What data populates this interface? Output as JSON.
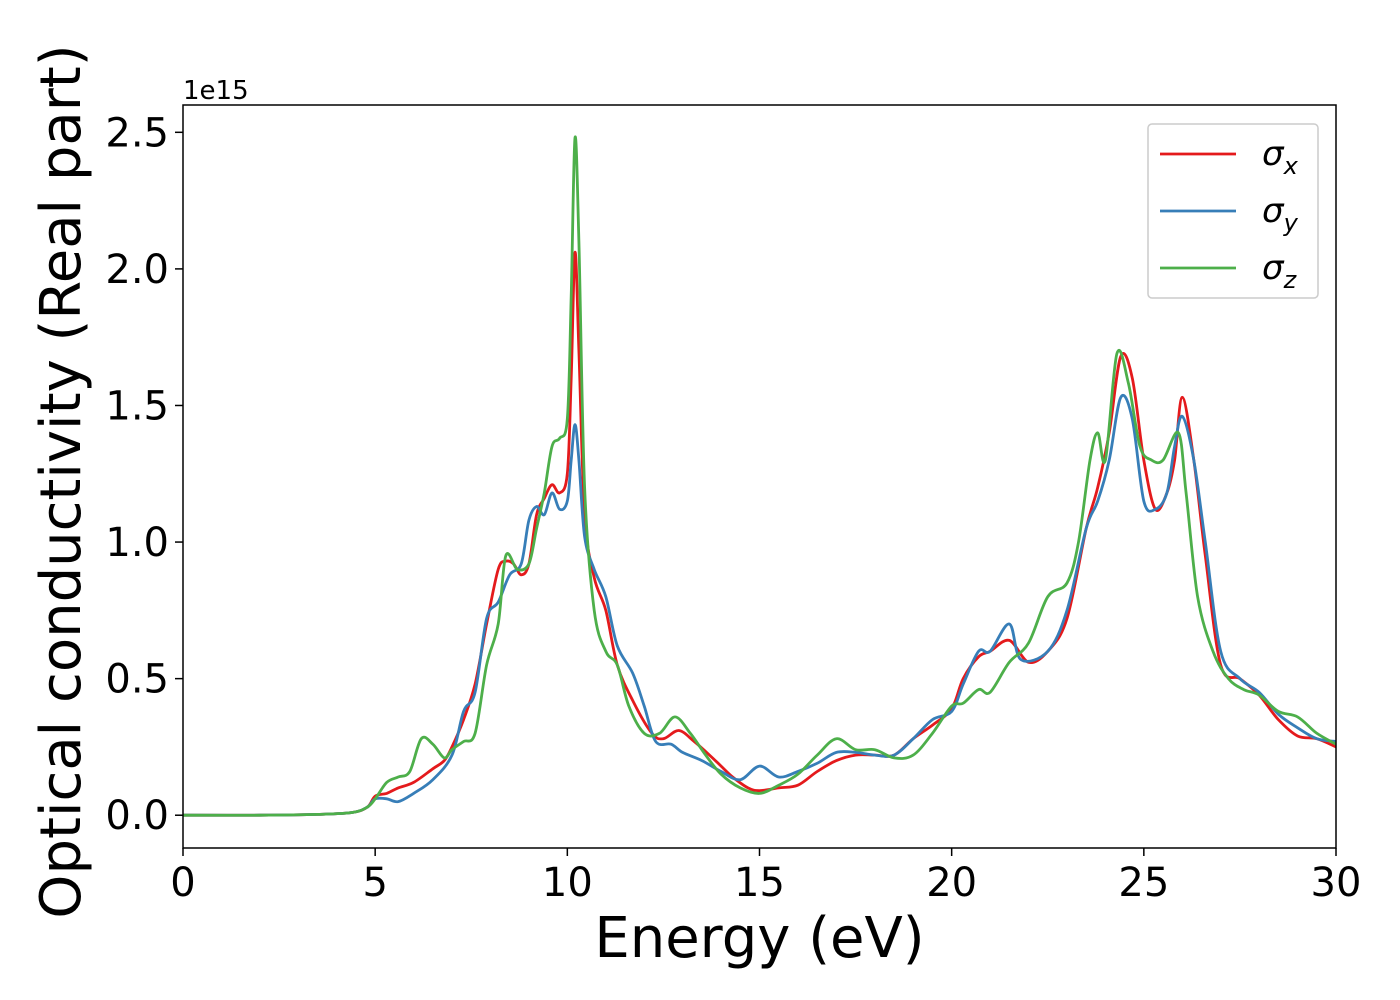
{
  "chart_data": {
    "type": "line",
    "title": "",
    "xlabel": "Energy (eV)",
    "ylabel": "Optical conductivity (Real part)",
    "y_offset_label": "1e15",
    "xlim": [
      0,
      30
    ],
    "ylim": [
      -0.12,
      2.6
    ],
    "xticks": [
      0,
      5,
      10,
      15,
      20,
      25,
      30
    ],
    "yticks": [
      0.0,
      0.5,
      1.0,
      1.5,
      2.0,
      2.5
    ],
    "xtick_labels": [
      "0",
      "5",
      "10",
      "15",
      "20",
      "25",
      "30"
    ],
    "ytick_labels": [
      "0.0",
      "0.5",
      "1.0",
      "1.5",
      "2.0",
      "2.5"
    ],
    "grid": false,
    "legend_position": "top-right",
    "series": [
      {
        "name": "σx",
        "base": "σ",
        "sub": "x",
        "color": "#e41a1c",
        "points": [
          [
            0,
            0
          ],
          [
            2,
            0
          ],
          [
            3.5,
            0.003
          ],
          [
            4.4,
            0.01
          ],
          [
            4.8,
            0.03
          ],
          [
            5.0,
            0.07
          ],
          [
            5.3,
            0.08
          ],
          [
            5.6,
            0.1
          ],
          [
            6.0,
            0.12
          ],
          [
            6.5,
            0.17
          ],
          [
            6.8,
            0.2
          ],
          [
            7.0,
            0.25
          ],
          [
            7.3,
            0.35
          ],
          [
            7.6,
            0.48
          ],
          [
            7.9,
            0.7
          ],
          [
            8.2,
            0.9
          ],
          [
            8.4,
            0.93
          ],
          [
            8.6,
            0.92
          ],
          [
            8.8,
            0.88
          ],
          [
            9.0,
            0.92
          ],
          [
            9.2,
            1.1
          ],
          [
            9.4,
            1.16
          ],
          [
            9.6,
            1.21
          ],
          [
            9.8,
            1.18
          ],
          [
            10.0,
            1.25
          ],
          [
            10.1,
            1.6
          ],
          [
            10.2,
            2.06
          ],
          [
            10.3,
            1.7
          ],
          [
            10.45,
            1.1
          ],
          [
            10.7,
            0.87
          ],
          [
            11.0,
            0.75
          ],
          [
            11.3,
            0.55
          ],
          [
            11.7,
            0.42
          ],
          [
            12.2,
            0.3
          ],
          [
            12.5,
            0.28
          ],
          [
            12.9,
            0.31
          ],
          [
            13.3,
            0.27
          ],
          [
            13.7,
            0.22
          ],
          [
            14.0,
            0.18
          ],
          [
            14.3,
            0.14
          ],
          [
            14.7,
            0.1
          ],
          [
            15.0,
            0.09
          ],
          [
            15.5,
            0.1
          ],
          [
            16.0,
            0.11
          ],
          [
            16.5,
            0.16
          ],
          [
            17.0,
            0.2
          ],
          [
            17.5,
            0.22
          ],
          [
            18.0,
            0.22
          ],
          [
            18.5,
            0.22
          ],
          [
            19.0,
            0.28
          ],
          [
            19.5,
            0.33
          ],
          [
            20.0,
            0.39
          ],
          [
            20.3,
            0.5
          ],
          [
            20.7,
            0.58
          ],
          [
            21.0,
            0.6
          ],
          [
            21.5,
            0.64
          ],
          [
            22.0,
            0.56
          ],
          [
            22.5,
            0.6
          ],
          [
            23.0,
            0.72
          ],
          [
            23.5,
            1.05
          ],
          [
            23.8,
            1.2
          ],
          [
            24.1,
            1.4
          ],
          [
            24.4,
            1.68
          ],
          [
            24.7,
            1.6
          ],
          [
            25.0,
            1.3
          ],
          [
            25.3,
            1.12
          ],
          [
            25.6,
            1.18
          ],
          [
            25.8,
            1.3
          ],
          [
            26.0,
            1.53
          ],
          [
            26.3,
            1.3
          ],
          [
            26.6,
            0.95
          ],
          [
            27.0,
            0.55
          ],
          [
            27.5,
            0.5
          ],
          [
            28.0,
            0.44
          ],
          [
            28.5,
            0.35
          ],
          [
            29.0,
            0.29
          ],
          [
            29.5,
            0.28
          ],
          [
            30.0,
            0.25
          ]
        ]
      },
      {
        "name": "σy",
        "base": "σ",
        "sub": "y",
        "color": "#377eb8",
        "points": [
          [
            0,
            0
          ],
          [
            2,
            0
          ],
          [
            3.5,
            0.003
          ],
          [
            4.4,
            0.01
          ],
          [
            4.8,
            0.03
          ],
          [
            5.0,
            0.06
          ],
          [
            5.3,
            0.06
          ],
          [
            5.6,
            0.05
          ],
          [
            6.0,
            0.08
          ],
          [
            6.5,
            0.13
          ],
          [
            7.0,
            0.22
          ],
          [
            7.3,
            0.38
          ],
          [
            7.6,
            0.45
          ],
          [
            7.9,
            0.72
          ],
          [
            8.2,
            0.78
          ],
          [
            8.5,
            0.88
          ],
          [
            8.8,
            0.92
          ],
          [
            9.0,
            1.08
          ],
          [
            9.2,
            1.13
          ],
          [
            9.4,
            1.1
          ],
          [
            9.6,
            1.18
          ],
          [
            9.8,
            1.12
          ],
          [
            10.0,
            1.15
          ],
          [
            10.1,
            1.3
          ],
          [
            10.2,
            1.43
          ],
          [
            10.3,
            1.3
          ],
          [
            10.45,
            1.02
          ],
          [
            10.7,
            0.9
          ],
          [
            11.0,
            0.8
          ],
          [
            11.3,
            0.62
          ],
          [
            11.7,
            0.52
          ],
          [
            12.0,
            0.4
          ],
          [
            12.3,
            0.27
          ],
          [
            12.7,
            0.26
          ],
          [
            13.0,
            0.23
          ],
          [
            13.5,
            0.2
          ],
          [
            14.0,
            0.16
          ],
          [
            14.5,
            0.13
          ],
          [
            15.0,
            0.18
          ],
          [
            15.5,
            0.14
          ],
          [
            16.0,
            0.16
          ],
          [
            16.5,
            0.19
          ],
          [
            17.0,
            0.23
          ],
          [
            17.5,
            0.23
          ],
          [
            18.0,
            0.22
          ],
          [
            18.5,
            0.22
          ],
          [
            19.0,
            0.28
          ],
          [
            19.5,
            0.35
          ],
          [
            20.0,
            0.38
          ],
          [
            20.3,
            0.48
          ],
          [
            20.7,
            0.6
          ],
          [
            21.0,
            0.6
          ],
          [
            21.5,
            0.7
          ],
          [
            21.8,
            0.57
          ],
          [
            22.5,
            0.6
          ],
          [
            23.0,
            0.75
          ],
          [
            23.5,
            1.05
          ],
          [
            23.8,
            1.15
          ],
          [
            24.1,
            1.3
          ],
          [
            24.4,
            1.53
          ],
          [
            24.7,
            1.45
          ],
          [
            25.0,
            1.15
          ],
          [
            25.3,
            1.12
          ],
          [
            25.6,
            1.18
          ],
          [
            25.8,
            1.35
          ],
          [
            26.0,
            1.46
          ],
          [
            26.3,
            1.3
          ],
          [
            26.6,
            1.0
          ],
          [
            27.0,
            0.6
          ],
          [
            27.5,
            0.5
          ],
          [
            28.0,
            0.45
          ],
          [
            28.5,
            0.37
          ],
          [
            29.0,
            0.32
          ],
          [
            29.5,
            0.28
          ],
          [
            30.0,
            0.27
          ]
        ]
      },
      {
        "name": "σz",
        "base": "σ",
        "sub": "z",
        "color": "#4daf4a",
        "points": [
          [
            0,
            0
          ],
          [
            2,
            0
          ],
          [
            3.5,
            0.003
          ],
          [
            4.4,
            0.01
          ],
          [
            4.8,
            0.03
          ],
          [
            5.0,
            0.06
          ],
          [
            5.3,
            0.12
          ],
          [
            5.6,
            0.14
          ],
          [
            5.9,
            0.16
          ],
          [
            6.2,
            0.28
          ],
          [
            6.5,
            0.26
          ],
          [
            6.8,
            0.21
          ],
          [
            7.0,
            0.24
          ],
          [
            7.3,
            0.27
          ],
          [
            7.6,
            0.3
          ],
          [
            7.9,
            0.55
          ],
          [
            8.2,
            0.7
          ],
          [
            8.4,
            0.95
          ],
          [
            8.7,
            0.9
          ],
          [
            9.0,
            0.92
          ],
          [
            9.2,
            1.05
          ],
          [
            9.4,
            1.18
          ],
          [
            9.6,
            1.35
          ],
          [
            9.8,
            1.38
          ],
          [
            10.0,
            1.45
          ],
          [
            10.1,
            1.9
          ],
          [
            10.2,
            2.48
          ],
          [
            10.3,
            2.1
          ],
          [
            10.45,
            1.2
          ],
          [
            10.7,
            0.75
          ],
          [
            11.0,
            0.6
          ],
          [
            11.3,
            0.55
          ],
          [
            11.6,
            0.4
          ],
          [
            12.0,
            0.3
          ],
          [
            12.4,
            0.3
          ],
          [
            12.8,
            0.36
          ],
          [
            13.2,
            0.3
          ],
          [
            13.6,
            0.22
          ],
          [
            14.0,
            0.15
          ],
          [
            14.5,
            0.1
          ],
          [
            15.0,
            0.08
          ],
          [
            15.5,
            0.11
          ],
          [
            16.0,
            0.15
          ],
          [
            16.5,
            0.22
          ],
          [
            17.0,
            0.28
          ],
          [
            17.5,
            0.24
          ],
          [
            18.0,
            0.24
          ],
          [
            18.5,
            0.21
          ],
          [
            19.0,
            0.22
          ],
          [
            19.5,
            0.3
          ],
          [
            20.0,
            0.4
          ],
          [
            20.3,
            0.41
          ],
          [
            20.7,
            0.46
          ],
          [
            21.0,
            0.45
          ],
          [
            21.5,
            0.56
          ],
          [
            22.0,
            0.63
          ],
          [
            22.5,
            0.8
          ],
          [
            23.0,
            0.85
          ],
          [
            23.3,
            1.0
          ],
          [
            23.6,
            1.3
          ],
          [
            23.8,
            1.4
          ],
          [
            24.0,
            1.3
          ],
          [
            24.3,
            1.69
          ],
          [
            24.6,
            1.58
          ],
          [
            24.9,
            1.35
          ],
          [
            25.2,
            1.3
          ],
          [
            25.5,
            1.3
          ],
          [
            25.9,
            1.4
          ],
          [
            26.1,
            1.18
          ],
          [
            26.4,
            0.8
          ],
          [
            26.8,
            0.6
          ],
          [
            27.2,
            0.5
          ],
          [
            27.6,
            0.46
          ],
          [
            28.0,
            0.44
          ],
          [
            28.5,
            0.38
          ],
          [
            29.0,
            0.36
          ],
          [
            29.5,
            0.3
          ],
          [
            30.0,
            0.26
          ]
        ]
      }
    ]
  }
}
